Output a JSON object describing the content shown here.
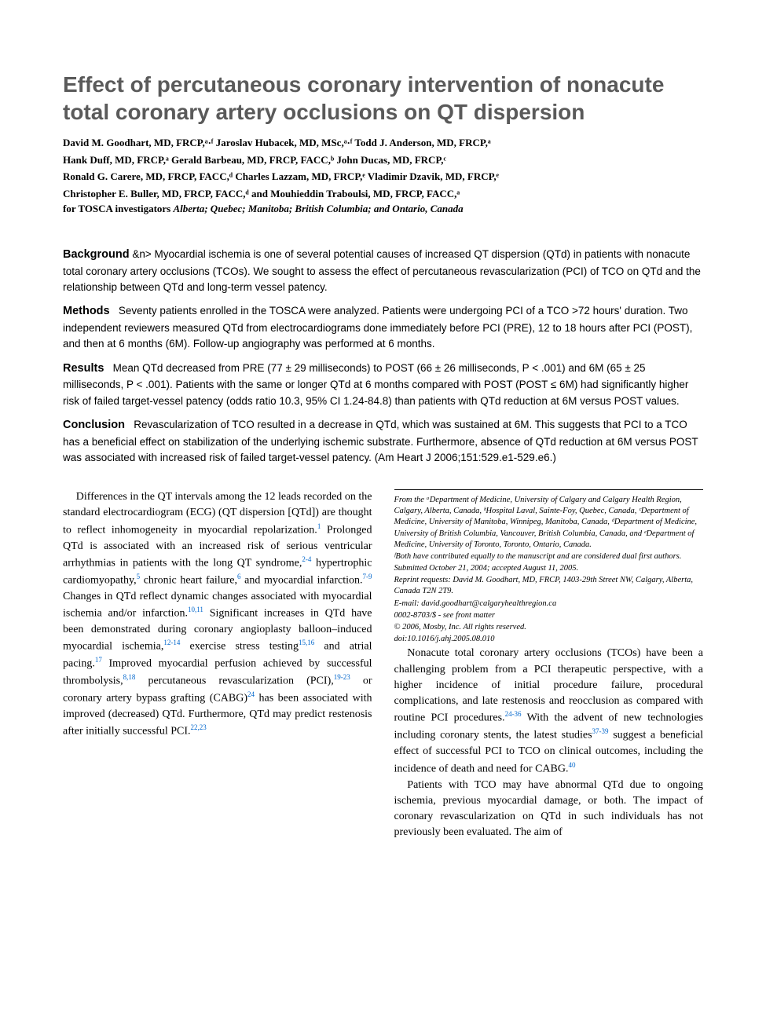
{
  "title": "Effect of percutaneous coronary intervention of nonacute total coronary artery occlusions on QT dispersion",
  "authors_line1": "David M. Goodhart, MD, FRCP,ᵃ·ᶠ Jaroslav Hubacek, MD, MSc,ᵃ·ᶠ Todd J. Anderson, MD, FRCP,ᵃ",
  "authors_line2": "Hank Duff, MD, FRCP,ᵃ Gerald Barbeau, MD, FRCP, FACC,ᵇ John Ducas, MD, FRCP,ᶜ",
  "authors_line3": "Ronald G. Carere, MD, FRCP, FACC,ᵈ Charles Lazzam, MD, FRCP,ᵉ Vladimir Dzavik, MD, FRCP,ᵉ",
  "authors_line4": "Christopher E. Buller, MD, FRCP, FACC,ᵈ and Mouhieddin Traboulsi, MD, FRCP, FACC,ᵃ",
  "investigators_prefix": "for TOSCA investigators ",
  "investigators_loc": "Alberta; Quebec; Manitoba; British Columbia; and Ontario, Canada",
  "abstract": {
    "background": {
      "heading": "Background",
      "text": "Myocardial ischemia is one of several potential causes of increased QT dispersion (QTd) in patients with nonacute total coronary artery occlusions (TCOs). We sought to assess the effect of percutaneous revascularization (PCI) of TCO on QTd and the relationship between QTd and long-term vessel patency."
    },
    "methods": {
      "heading": "Methods",
      "text": "Seventy patients enrolled in the TOSCA were analyzed. Patients were undergoing PCI of a TCO >72 hours' duration. Two independent reviewers measured QTd from electrocardiograms done immediately before PCI (PRE), 12 to 18 hours after PCI (POST), and then at 6 months (6M). Follow-up angiography was performed at 6 months."
    },
    "results": {
      "heading": "Results",
      "text": "Mean QTd decreased from PRE (77 ± 29 milliseconds) to POST (66 ± 26 milliseconds, P < .001) and 6M (65 ± 25 milliseconds, P < .001). Patients with the same or longer QTd at 6 months compared with POST (POST ≤ 6M) had significantly higher risk of failed target-vessel patency (odds ratio 10.3, 95% CI 1.24-84.8) than patients with QTd reduction at 6M versus POST values."
    },
    "conclusion": {
      "heading": "Conclusion",
      "text": "Revascularization of TCO resulted in a decrease in QTd, which was sustained at 6M. This suggests that PCI to a TCO has a beneficial effect on stabilization of the underlying ischemic substrate. Furthermore, absence of QTd reduction at 6M versus POST was associated with increased risk of failed target-vessel patency. (Am Heart J 2006;151:529.e1-529.e6.)"
    }
  },
  "body": {
    "p1a": "Differences in the QT intervals among the 12 leads recorded on the standard electrocardiogram (ECG) (QT dispersion [QTd]) are thought to reflect inhomogeneity in myocardial repolarization.",
    "p1b": " Prolonged QTd is associated with an increased risk of serious ventricular arrhythmias in patients with the long QT syndrome,",
    "p1c": " hypertrophic cardiomyopathy,",
    "p1d": " chronic heart failure,",
    "p1e": " and myocardial infarction.",
    "p1f": " Changes in QTd reflect dynamic changes associated with myocardial ischemia and/or infarction.",
    "p1g": " Significant increases in QTd have ",
    "p1h": "been demonstrated during coronary angioplasty balloon–induced myocardial ischemia,",
    "p1i": " exercise stress testing",
    "p1j": " and atrial pacing.",
    "p1k": " Improved myocardial perfusion achieved by successful thrombolysis,",
    "p1l": " percutaneous revascularization (PCI),",
    "p1m": " or coronary artery bypass grafting (CABG)",
    "p1n": " has been associated with improved (decreased) QTd. Furthermore, QTd may predict restenosis after initially successful PCI.",
    "p2a": "Nonacute total coronary artery occlusions (TCOs) have been a challenging problem from a PCI therapeutic perspective, with a higher incidence of initial procedure failure, procedural complications, and late restenosis and reocclusion as compared with routine PCI procedures.",
    "p2b": " With the advent of new technologies including coronary stents, the latest studies",
    "p2c": " suggest a beneficial effect of successful PCI to TCO on clinical outcomes, including the incidence of death and need for CABG.",
    "p3": "Patients with TCO may have abnormal QTd due to ongoing ischemia, previous myocardial damage, or both. The impact of coronary revascularization on QTd in such individuals has not previously been evaluated. The aim of",
    "refs": {
      "r1": "1",
      "r24": "2-4",
      "r5": "5",
      "r6": "6",
      "r79": "7-9",
      "r1011": "10,11",
      "r1214": "12-14",
      "r1516": "15,16",
      "r17": "17",
      "r818": "8,18",
      "r1923": "19-23",
      "r2424": "24",
      "r2223": "22,23",
      "r2436": "24-36",
      "r3739": "37-39",
      "r40": "40"
    }
  },
  "footnotes": {
    "affil": "From the ᵃDepartment of Medicine, University of Calgary and Calgary Health Region, Calgary, Alberta, Canada, ᵇHospital Laval, Sainte-Foy, Quebec, Canada, ᶜDepartment of Medicine, University of Manitoba, Winnipeg, Manitoba, Canada, ᵈDepartment of Medicine, University of British Columbia, Vancouver, British Columbia, Canada, and ᵉDepartment of Medicine, University of Toronto, Toronto, Ontario, Canada.",
    "equal": "ᶠBoth have contributed equally to the manuscript and are considered dual first authors.",
    "submitted": "Submitted October 21, 2004; accepted August 11, 2005.",
    "reprint": "Reprint requests: David M. Goodhart, MD, FRCP, 1403-29th Street NW, Calgary, Alberta, Canada T2N 2T9.",
    "email": "E-mail: david.goodhart@calgaryhealthregion.ca",
    "issn": "0002-8703/$ - see front matter",
    "copyright": "© 2006, Mosby, Inc. All rights reserved.",
    "doi": "doi:10.1016/j.ahj.2005.08.010"
  },
  "colors": {
    "title": "#5a5a5a",
    "ref_link": "#0066cc",
    "text": "#000000",
    "background": "#ffffff"
  },
  "fontsizes": {
    "title": 28,
    "authors": 13,
    "abstract_heading": 14.5,
    "abstract_body": 13.5,
    "body": 14,
    "footnote": 10.5
  }
}
